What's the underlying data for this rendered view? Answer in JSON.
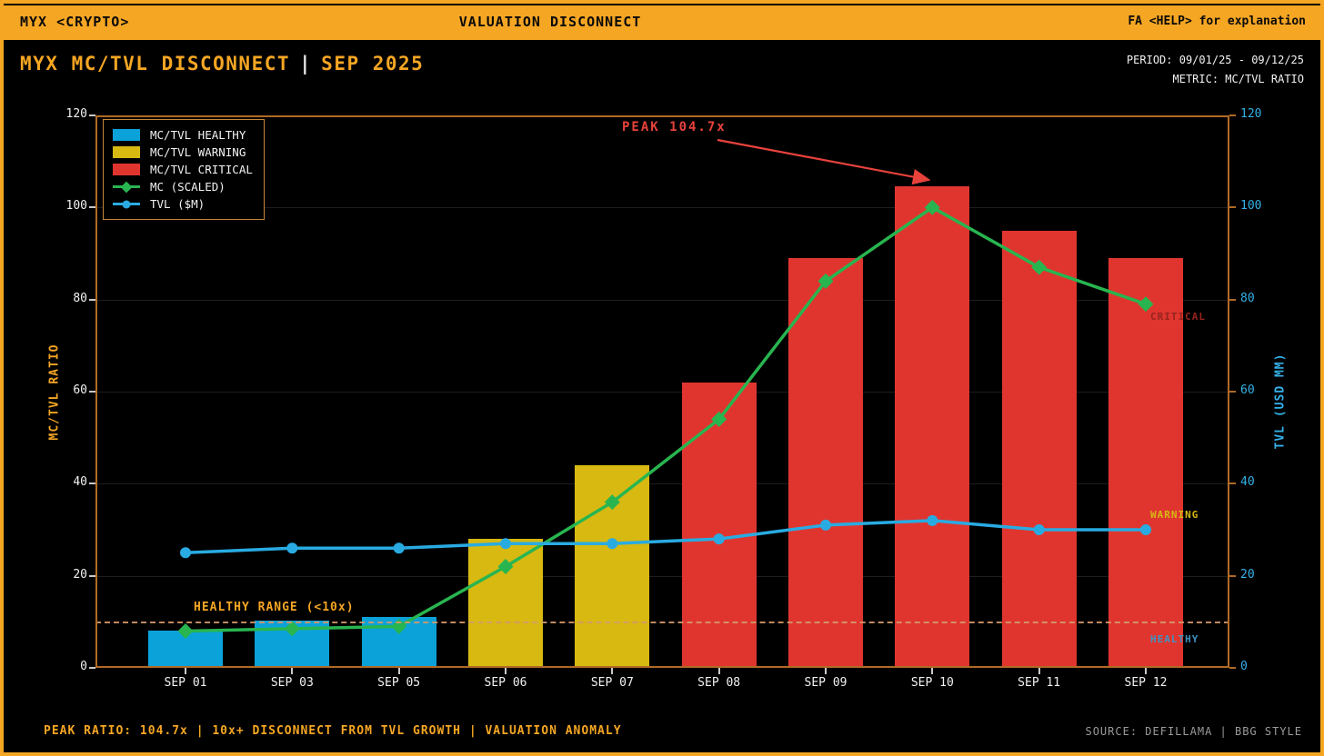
{
  "header": {
    "left": "MYX <CRYPTO>",
    "center": "VALUATION DISCONNECT",
    "right": "FA  <HELP> for explanation"
  },
  "title": {
    "main": "MYX MC/TVL DISCONNECT",
    "separator": "|",
    "date": "SEP 2025",
    "period": "PERIOD: 09/01/25 - 09/12/25",
    "metric": "METRIC: MC/TVL RATIO"
  },
  "colors": {
    "accent_orange": "#f5a623",
    "healthy": "#0ba2d9",
    "warning": "#d7b912",
    "critical": "#e0352f",
    "green": "#28b550",
    "blue": "#29abe2",
    "threshold": "#d69a6a",
    "critical_zone": "#96231d",
    "warning_zone": "#d7b912",
    "healthy_zone": "#3f93c0",
    "spine": "#b06a25",
    "grid": "#1d1d1d",
    "arrow_red": "#e8423c"
  },
  "chart_data": {
    "type": "bar",
    "subtype": "bar+line combo, dual y-axis",
    "categories": [
      "SEP 01",
      "SEP 03",
      "SEP 05",
      "SEP 06",
      "SEP 07",
      "SEP 08",
      "SEP 09",
      "SEP 10",
      "SEP 11",
      "SEP 12"
    ],
    "series": [
      {
        "name": "MC/TVL RATIO",
        "type": "bar",
        "values": [
          8,
          10.3,
          11,
          28,
          44,
          62,
          89,
          104.7,
          95,
          89
        ],
        "statuses": [
          "healthy",
          "healthy",
          "healthy",
          "warning",
          "warning",
          "critical",
          "critical",
          "critical",
          "critical",
          "critical"
        ]
      },
      {
        "name": "MC (SCALED)",
        "type": "line",
        "marker": "diamond",
        "color_key": "green",
        "values": [
          8,
          8.5,
          9,
          22,
          36,
          54,
          84,
          100,
          87,
          79
        ]
      },
      {
        "name": "TVL ($M)",
        "type": "line",
        "marker": "circle",
        "color_key": "blue",
        "values": [
          25,
          26,
          26,
          27,
          27,
          28,
          31,
          32,
          30,
          30
        ]
      }
    ],
    "ylabel_left": "MC/TVL RATIO",
    "ylabel_right": "TVL (USD MM)",
    "ylim": [
      0,
      120
    ],
    "yticks": [
      0,
      20,
      40,
      60,
      80,
      100,
      120
    ],
    "grid": "horizontal only, dark gray",
    "legend_position": "upper-left",
    "legend": [
      {
        "label": "MC/TVL HEALTHY",
        "swatch": "bar",
        "color_key": "healthy"
      },
      {
        "label": "MC/TVL WARNING",
        "swatch": "bar",
        "color_key": "warning"
      },
      {
        "label": "MC/TVL CRITICAL",
        "swatch": "bar",
        "color_key": "critical"
      },
      {
        "label": "MC (SCALED)",
        "swatch": "line-diamond",
        "color_key": "green"
      },
      {
        "label": "TVL ($M)",
        "swatch": "line-circle",
        "color_key": "blue"
      }
    ],
    "threshold": {
      "value": 10,
      "label": "HEALTHY RANGE (<10x)"
    },
    "annotations": {
      "peak": {
        "text": "PEAK 104.7x",
        "target_category": "SEP 10",
        "target_value": 104.7
      }
    },
    "zone_labels": [
      {
        "text": "CRITICAL",
        "value": 76,
        "color_key": "critical_zone"
      },
      {
        "text": "WARNING",
        "value": 33,
        "color_key": "warning_zone"
      },
      {
        "text": "HEALTHY",
        "value": 6,
        "color_key": "healthy_zone"
      }
    ]
  },
  "footer": {
    "left": "PEAK RATIO: 104.7x  |  10x+ DISCONNECT FROM TVL GROWTH  |  VALUATION ANOMALY",
    "right": "SOURCE: DEFILLAMA  |  BBG STYLE"
  }
}
